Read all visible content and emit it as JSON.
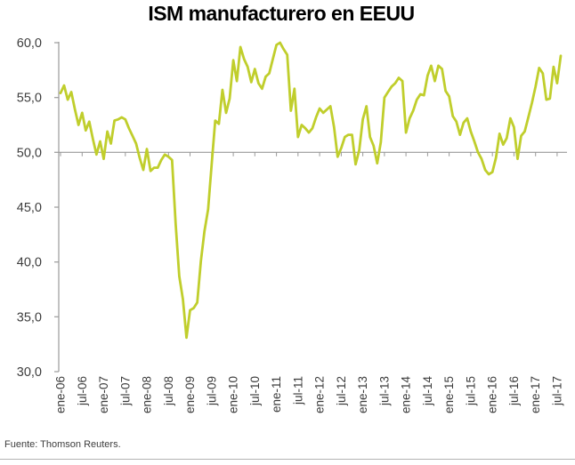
{
  "title": "ISM manufacturero en EEUU",
  "footer": {
    "source": "Fuente: Thomson Reuters."
  },
  "colors": {
    "line": "#c0ce2c",
    "axis": "#999999",
    "label": "#3d3d3d",
    "title": "#000000",
    "divider": "#b3b3b3"
  },
  "chart_data": {
    "type": "line",
    "title": "ISM manufacturero en EEUU",
    "frequency": "monthly",
    "period_start": "ene-06",
    "period_end": "ago-17",
    "reference_line": 50.0,
    "grid": false,
    "legend": "none",
    "y_axis": {
      "min": 30,
      "max": 60,
      "ticks": [
        {
          "value": 60,
          "label": "60,0"
        },
        {
          "value": 55,
          "label": "55,0"
        },
        {
          "value": 50,
          "label": "50,0"
        },
        {
          "value": 45,
          "label": "45,0"
        },
        {
          "value": 40,
          "label": "40,0"
        },
        {
          "value": 35,
          "label": "35,0"
        },
        {
          "value": 30,
          "label": "30,0"
        }
      ]
    },
    "x_axis": {
      "months_per_tick": 6,
      "tick_labels": [
        "ene-06",
        "jul-06",
        "ene-07",
        "jul-07",
        "ene-08",
        "jul-08",
        "ene-09",
        "jul-09",
        "ene-10",
        "jul-10",
        "ene-11",
        "jul-11",
        "ene-12",
        "jul-12",
        "ene-13",
        "jul-13",
        "ene-14",
        "jul-14",
        "ene-15",
        "jul-15",
        "ene-16",
        "jul-16",
        "ene-17",
        "jul-17"
      ]
    },
    "series": [
      {
        "name": "ISM manufacturero",
        "values": [
          55.4,
          56.1,
          54.8,
          55.5,
          53.9,
          52.5,
          53.6,
          52.0,
          52.8,
          51.2,
          49.8,
          51.0,
          49.4,
          51.9,
          50.8,
          52.9,
          53.0,
          53.2,
          53.0,
          52.2,
          51.5,
          50.8,
          49.5,
          48.4,
          50.3,
          48.3,
          48.6,
          48.6,
          49.3,
          49.8,
          49.6,
          49.3,
          43.4,
          38.7,
          36.6,
          33.1,
          35.6,
          35.8,
          36.3,
          40.1,
          42.8,
          44.8,
          48.9,
          52.9,
          52.6,
          55.7,
          53.6,
          54.9,
          58.4,
          56.5,
          59.6,
          58.5,
          57.8,
          56.4,
          57.6,
          56.3,
          55.8,
          56.9,
          57.2,
          58.5,
          59.8,
          60.0,
          59.4,
          58.9,
          53.8,
          55.8,
          51.4,
          52.5,
          52.2,
          51.8,
          52.2,
          53.2,
          54.0,
          53.6,
          53.9,
          54.2,
          52.3,
          49.6,
          50.4,
          51.4,
          51.6,
          51.6,
          48.9,
          50.2,
          53.0,
          54.2,
          51.4,
          50.6,
          49.0,
          50.9,
          55.0,
          55.5,
          56.0,
          56.3,
          56.8,
          56.5,
          51.8,
          53.1,
          53.8,
          54.8,
          55.3,
          55.2,
          57.0,
          57.9,
          56.5,
          57.9,
          57.6,
          55.6,
          55.1,
          53.3,
          52.8,
          51.6,
          52.7,
          53.1,
          51.9,
          51.0,
          50.0,
          49.4,
          48.4,
          48.0,
          48.2,
          49.5,
          51.7,
          50.7,
          51.3,
          53.1,
          52.3,
          49.4,
          51.5,
          51.9,
          53.2,
          54.5,
          56.0,
          57.7,
          57.2,
          54.8,
          54.9,
          57.8,
          56.3,
          58.8
        ]
      }
    ]
  }
}
